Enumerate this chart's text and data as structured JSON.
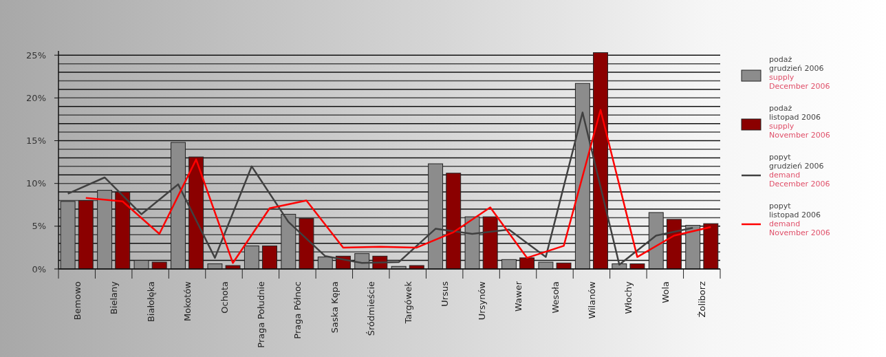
{
  "chart_data": {
    "type": "bar",
    "categories": [
      "Bemowo",
      "Bielany",
      "Białołęka",
      "Mokotów",
      "Ochota",
      "Praga Południe",
      "Praga Północ",
      "Saska Kępa",
      "Śródmieście",
      "Targówek",
      "Ursus",
      "Ursynów",
      "Wawer",
      "Wesoła",
      "Wilanów",
      "Włochy",
      "Wola",
      "Żoliborz"
    ],
    "series": [
      {
        "name": "podaż\ngrudzień 2006\nsupply\nDecember 2006",
        "color": "#8c8c8c",
        "values": [
          7.9,
          9.2,
          1.0,
          14.8,
          0.6,
          2.7,
          6.4,
          1.4,
          1.8,
          0.3,
          12.3,
          6.1,
          1.1,
          0.8,
          21.7,
          0.6,
          6.6,
          5.1
        ]
      },
      {
        "name": "podaż\nlistopad 2006\nsupply\nNovember 2006",
        "color": "#8b0000",
        "values": [
          8.0,
          9.0,
          0.8,
          13.1,
          0.4,
          2.7,
          5.9,
          1.5,
          1.5,
          0.4,
          11.2,
          6.1,
          1.3,
          0.7,
          25.3,
          0.6,
          5.8,
          5.3
        ]
      },
      {
        "name": "popyt\ngrudzień 2006\ndemand\nDecember 2006",
        "type": "line",
        "color": "#404040",
        "values": [
          8.8,
          10.7,
          6.4,
          9.9,
          1.3,
          12.0,
          5.5,
          1.5,
          0.7,
          0.8,
          4.7,
          4.1,
          4.6,
          1.4,
          18.3,
          0.5,
          3.9,
          4.8
        ]
      },
      {
        "name": "popyt\nlistopad 2006\ndemand\nNovember 2006",
        "type": "line",
        "color": "#ff0000",
        "values": [
          8.3,
          7.9,
          4.1,
          12.8,
          0.7,
          7.1,
          8.0,
          2.5,
          2.6,
          2.5,
          4.3,
          7.2,
          1.3,
          2.7,
          18.6,
          1.4,
          3.9,
          4.9
        ]
      }
    ],
    "ylim": [
      0,
      25.5
    ],
    "yticks": [
      {
        "value": 0,
        "label": "0%"
      },
      {
        "value": 1,
        "label": null
      },
      {
        "value": 2,
        "label": null
      },
      {
        "value": 3,
        "label": null
      },
      {
        "value": 4,
        "label": null
      },
      {
        "value": 5,
        "label": "5%"
      },
      {
        "value": 6,
        "label": null
      },
      {
        "value": 7,
        "label": null
      },
      {
        "value": 8,
        "label": null
      },
      {
        "value": 9,
        "label": null
      },
      {
        "value": 10,
        "label": "10%"
      },
      {
        "value": 11,
        "label": null
      },
      {
        "value": 12,
        "label": null
      },
      {
        "value": 13,
        "label": null
      },
      {
        "value": 14,
        "label": null
      },
      {
        "value": 15,
        "label": "15%"
      },
      {
        "value": 16,
        "label": null
      },
      {
        "value": 17,
        "label": null
      },
      {
        "value": 18,
        "label": null
      },
      {
        "value": 19,
        "label": null
      },
      {
        "value": 20,
        "label": "20%"
      },
      {
        "value": 21,
        "label": null
      },
      {
        "value": 22,
        "label": null
      },
      {
        "value": 23,
        "label": null
      },
      {
        "value": 24,
        "label": null
      },
      {
        "value": 25,
        "label": "25%"
      }
    ],
    "grid": "y",
    "legend": "right",
    "marker": "none",
    "line_style": "solid"
  }
}
